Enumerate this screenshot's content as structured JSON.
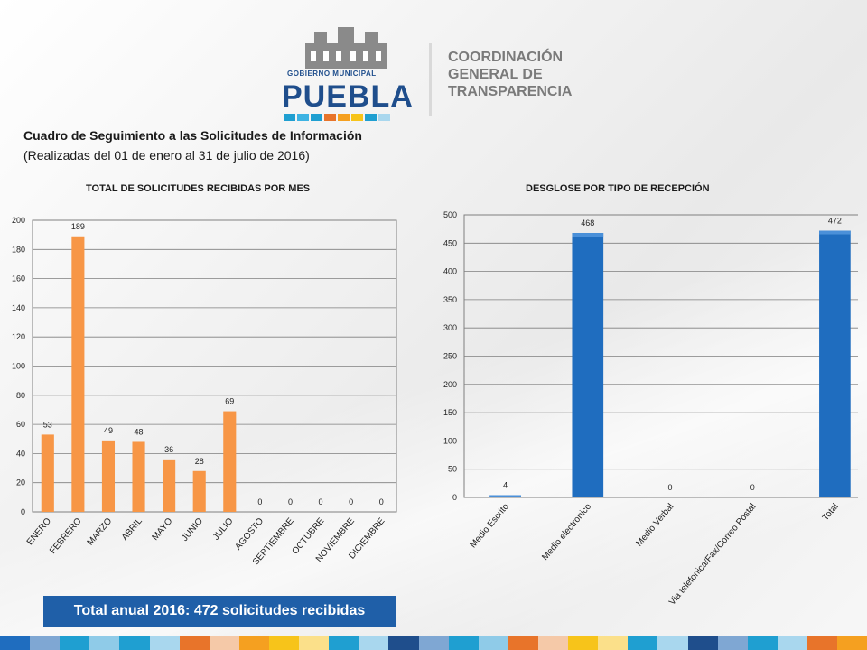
{
  "logo": {
    "gov_label": "GOBIERNO MUNICIPAL",
    "city": "PUEBLA",
    "coordination_lines": [
      "COORDINACIÓN",
      "GENERAL DE",
      "TRANSPARENCIA"
    ],
    "strip_colors": [
      "#1f9fd1",
      "#3db3e3",
      "#1f9fd1",
      "#e8742a",
      "#f5a020",
      "#f7c41a",
      "#1f9fd1",
      "#a9d7ee"
    ]
  },
  "header": {
    "title": "Cuadro de Seguimiento a las Solicitudes de Información",
    "subtitle": "(Realizadas del 01 de enero al 31 de julio de 2016)"
  },
  "chart_data": [
    {
      "type": "bar",
      "title": "TOTAL DE SOLICITUDES RECIBIDAS POR MES",
      "categories": [
        "ENERO",
        "FEBRERO",
        "MARZO",
        "ABRIL",
        "MAYO",
        "JUNIO",
        "JULIO",
        "AGOSTO",
        "SEPTIEMBRE",
        "OCTUBRE",
        "NOVIEMBRE",
        "DICIEMBRE"
      ],
      "values": [
        53,
        189,
        49,
        48,
        36,
        28,
        69,
        0,
        0,
        0,
        0,
        0
      ],
      "ylim": [
        0,
        200
      ],
      "yticks": [
        0,
        20,
        40,
        60,
        80,
        100,
        120,
        140,
        160,
        180,
        200
      ],
      "grid": true,
      "color": "#f79646"
    },
    {
      "type": "bar",
      "title": "DESGLOSE POR TIPO DE RECEPCIÓN",
      "categories": [
        "Medio Escrito",
        "Medio electronico",
        "Medio Verbal",
        "Via telefonica/Fax/Correo Postal",
        "Total"
      ],
      "values": [
        4,
        468,
        0,
        0,
        472
      ],
      "ylim": [
        0,
        500
      ],
      "yticks": [
        0,
        50,
        100,
        150,
        200,
        250,
        300,
        350,
        400,
        450,
        500
      ],
      "grid": true,
      "color": "#1f6dbf"
    }
  ],
  "footer": {
    "total_label": "Total anual  2016:  472 solicitudes recibidas"
  },
  "bottom_strip_colors": [
    "#1f6dbf",
    "#7fa7d3",
    "#1f9fd1",
    "#8fcbe8",
    "#1f9fd1",
    "#a9d7ee",
    "#e8742a",
    "#f5c9a8",
    "#f5a020",
    "#f7c41a",
    "#fbe08a",
    "#1f9fd1",
    "#a9d7ee",
    "#1f4e8c",
    "#7fa7d3",
    "#1f9fd1",
    "#8fcbe8",
    "#e8742a",
    "#f5c9a8",
    "#f7c41a",
    "#fbe08a",
    "#1f9fd1",
    "#a9d7ee",
    "#1f4e8c",
    "#7fa7d3",
    "#1f9fd1",
    "#a9d7ee",
    "#e8742a",
    "#f5a020"
  ]
}
